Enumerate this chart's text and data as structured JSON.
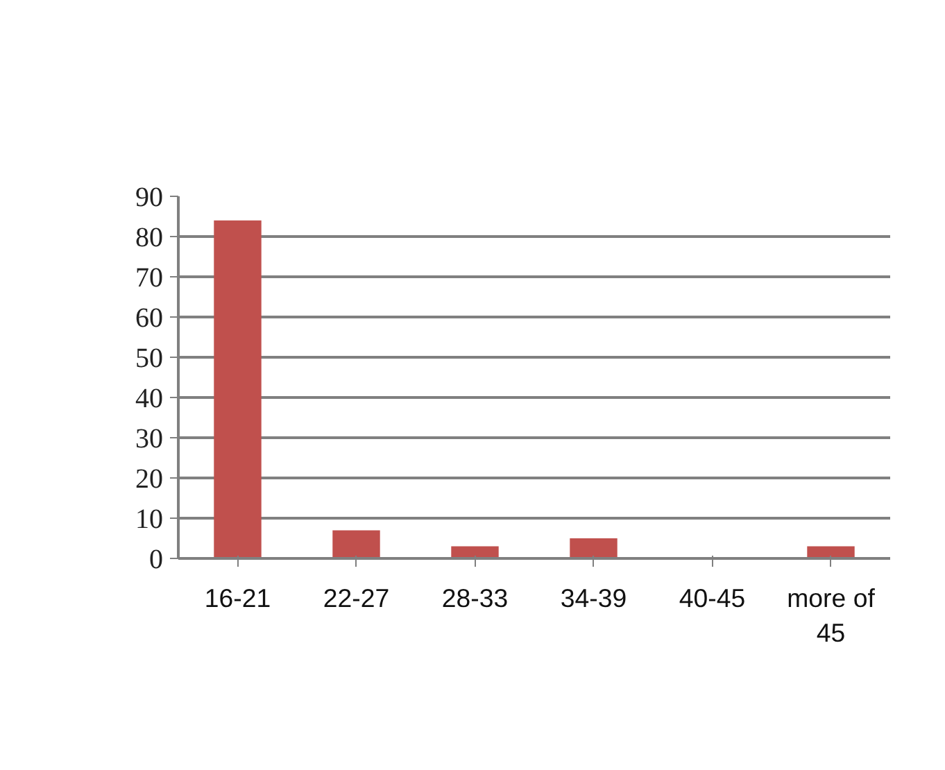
{
  "chart_data": {
    "type": "bar",
    "categories": [
      "16-21",
      "22-27",
      "28-33",
      "34-39",
      "40-45",
      "more of 45"
    ],
    "values": [
      84,
      7,
      3,
      5,
      0,
      3
    ],
    "color": "#c0504d",
    "ylim": [
      0,
      90
    ],
    "yticks": [
      0,
      10,
      20,
      30,
      40,
      50,
      60,
      70,
      80,
      90
    ],
    "grid": "y"
  }
}
